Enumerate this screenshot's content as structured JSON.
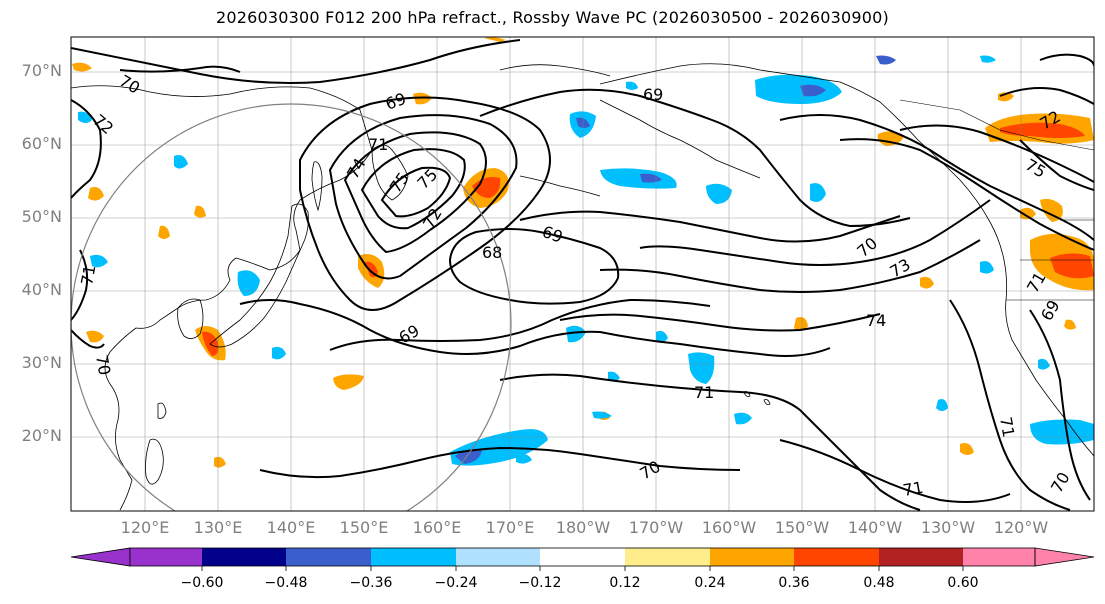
{
  "title": "2026030300 F012 200 hPa refract., Rossby Wave PC (2026030500 - 2026030900)",
  "latitude_labels": [
    "70°N",
    "60°N",
    "50°N",
    "40°N",
    "30°N",
    "20°N"
  ],
  "longitude_labels": [
    "120°E",
    "130°E",
    "140°E",
    "150°E",
    "160°E",
    "170°E",
    "180°W",
    "170°W",
    "160°W",
    "150°W",
    "140°W",
    "130°W",
    "120°W"
  ],
  "contour_labels": [
    "70",
    "69",
    "71",
    "74",
    "75",
    "75",
    "72",
    "68",
    "69",
    "69",
    "70",
    "73",
    "74",
    "71",
    "70",
    "71",
    "70",
    "75",
    "72",
    "71",
    "69",
    "72",
    "71",
    "70",
    "69",
    "71"
  ],
  "colorbar": {
    "tick_labels": [
      "−0.60",
      "−0.48",
      "−0.36",
      "−0.24",
      "−0.12",
      "0.12",
      "0.24",
      "0.36",
      "0.48",
      "0.60"
    ],
    "colors": [
      "#9932cc",
      "#00008b",
      "#3a5fcd",
      "#00bfff",
      "#b0e2ff",
      "#ffffff",
      "#ffec8b",
      "#ffa500",
      "#ff4500",
      "#b22222",
      "#ff82ab"
    ]
  },
  "colors": {
    "land_outline": "#000000",
    "grid": "#808080",
    "contour": "#000000",
    "circle": "#808080",
    "axis_label": "#808080"
  }
}
